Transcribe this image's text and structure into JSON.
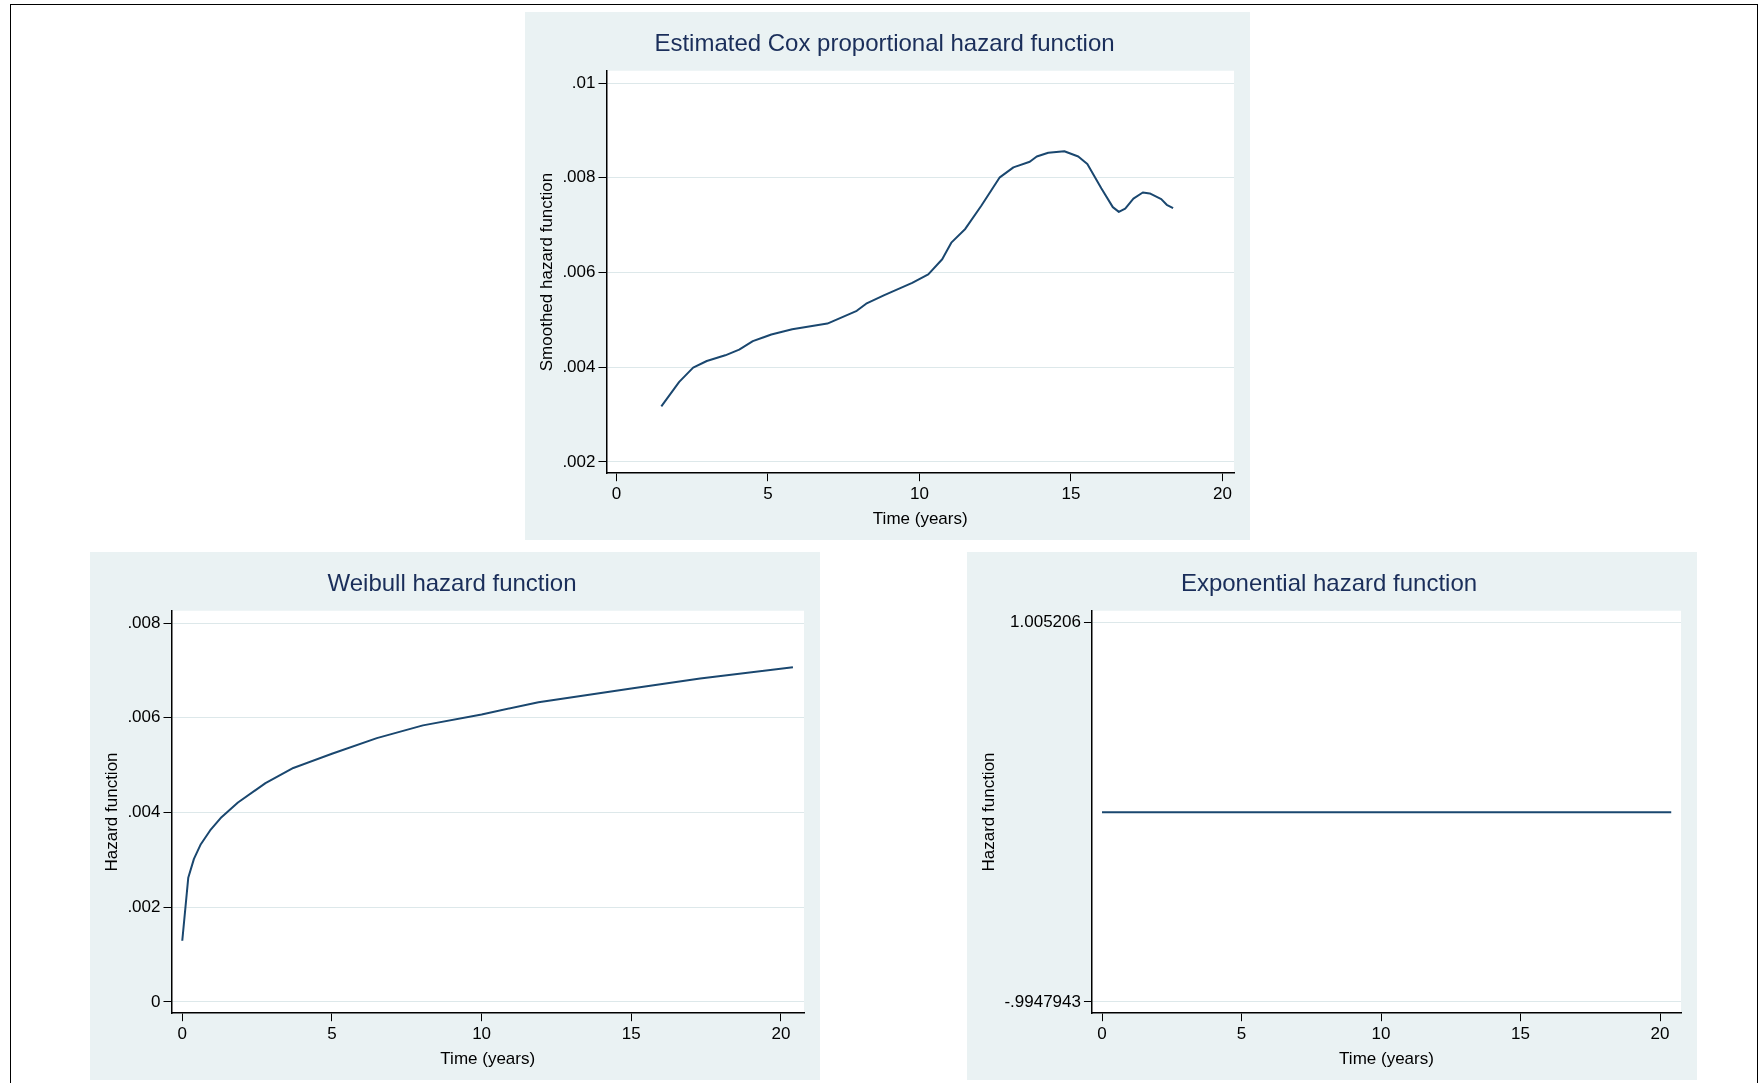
{
  "chart_data": [
    {
      "type": "line",
      "title": "Estimated Cox proportional hazard function",
      "xlabel": "Time (years)",
      "ylabel": "Smoothed hazard function",
      "x": [
        1.48,
        2.07,
        2.53,
        2.98,
        3.59,
        4.05,
        4.5,
        5.11,
        5.8,
        6.96,
        7.93,
        8.24,
        8.84,
        9.76,
        10.29,
        10.75,
        11.05,
        11.51,
        12.04,
        12.65,
        13.1,
        13.64,
        13.87,
        14.25,
        14.78,
        15.24,
        15.54,
        16.0,
        16.38,
        16.58,
        16.79,
        17.06,
        17.37,
        17.6,
        17.98,
        18.16,
        18.37
      ],
      "series": [
        {
          "color": "#1a476f",
          "values": [
            0.00317,
            0.00369,
            0.00399,
            0.00413,
            0.00425,
            0.00437,
            0.00455,
            0.00469,
            0.0048,
            0.00492,
            0.00519,
            0.00534,
            0.00552,
            0.00578,
            0.00596,
            0.00628,
            0.00663,
            0.00692,
            0.00741,
            0.00801,
            0.00822,
            0.00834,
            0.00845,
            0.00853,
            0.00856,
            0.00845,
            0.00829,
            0.00778,
            0.00738,
            0.00728,
            0.00735,
            0.00756,
            0.00769,
            0.00767,
            0.00755,
            0.00743,
            0.00736
          ]
        }
      ],
      "xlim": [
        -0.33,
        20.38
      ],
      "xticks": [
        0,
        5,
        10,
        15,
        20
      ],
      "ylim": [
        0.00176,
        0.01026
      ],
      "yticks": [
        {
          "value": 0.002,
          "label": ".002"
        },
        {
          "value": 0.004,
          "label": ".004"
        },
        {
          "value": 0.006,
          "label": ".006"
        },
        {
          "value": 0.008,
          "label": ".008"
        },
        {
          "value": 0.01,
          "label": ".01"
        }
      ],
      "grid": "y",
      "marker": "none"
    },
    {
      "type": "line",
      "title": "Weibull hazard function",
      "xlabel": "Time (years)",
      "ylabel": "Hazard function",
      "x": [
        0,
        0.2,
        0.39,
        0.62,
        0.93,
        1.31,
        1.86,
        2.78,
        3.71,
        5.0,
        6.5,
        8.04,
        10.0,
        11.9,
        15.0,
        17.3,
        20.4
      ],
      "series": [
        {
          "color": "#1a476f",
          "values": [
            0.00129,
            0.00262,
            0.00302,
            0.00333,
            0.00362,
            0.0039,
            0.00421,
            0.00462,
            0.00494,
            0.00524,
            0.00557,
            0.00584,
            0.00607,
            0.00633,
            0.00662,
            0.00683,
            0.00707
          ]
        }
      ],
      "xlim": [
        -0.36,
        20.77
      ],
      "xticks": [
        0,
        5,
        10,
        15,
        20
      ],
      "ylim": [
        -0.00024,
        0.00826
      ],
      "yticks": [
        0,
        {
          "value": 0.002,
          "label": ".002"
        },
        {
          "value": 0.004,
          "label": ".004"
        },
        {
          "value": 0.006,
          "label": ".006"
        },
        {
          "value": 0.008,
          "label": ".008"
        }
      ],
      "grid": "y",
      "marker": "none"
    },
    {
      "type": "line",
      "title": "Exponential hazard function",
      "xlabel": "Time (years)",
      "ylabel": "Hazard function",
      "x": [
        0,
        20.4
      ],
      "series": [
        {
          "color": "#1a476f",
          "values": [
            0.005206,
            0.005206
          ]
        }
      ],
      "xlim": [
        -0.36,
        20.75
      ],
      "xticks": [
        0,
        5,
        10,
        15,
        20
      ],
      "ylim": [
        -1.054,
        1.067
      ],
      "yticks": [
        {
          "value": -0.9947943,
          "label": "-.9947943"
        },
        {
          "value": 1.005206,
          "label": "1.005206"
        }
      ],
      "grid": "y",
      "marker": "none"
    }
  ]
}
